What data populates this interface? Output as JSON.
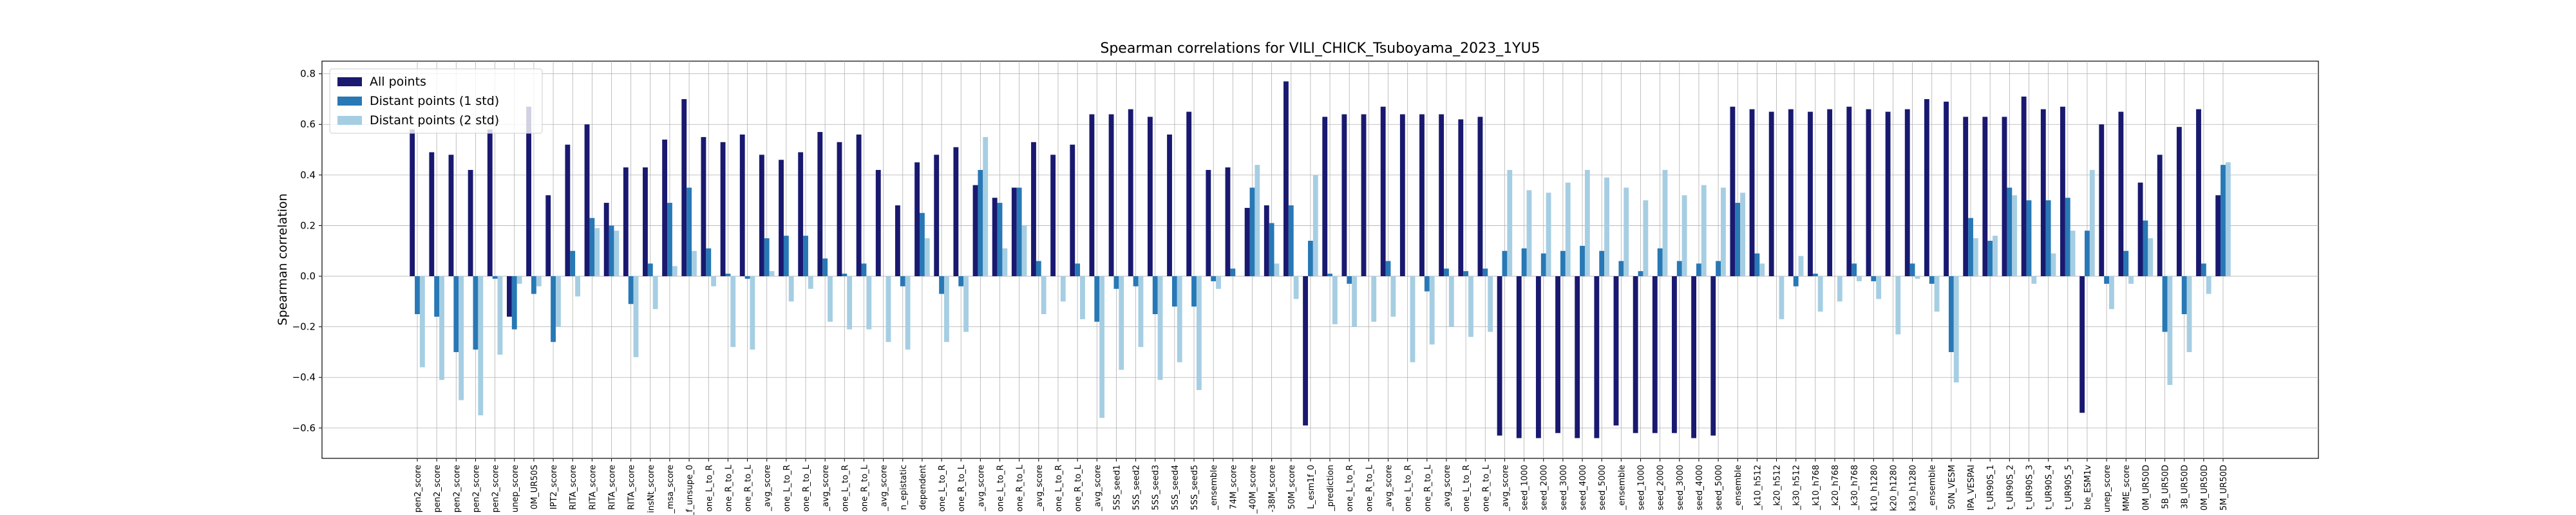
{
  "chart_data": {
    "type": "bar",
    "title": "Spearman correlations for VILI_CHICK_Tsuboyama_2023_1YU5",
    "y_label": "Spearman correlation",
    "categories": [
      "pen2_score",
      "pen2_score",
      "pen2_score",
      "pen2_score",
      "pen2_score",
      "unep_score",
      "0M_UR50S",
      "IPT2_score",
      "RITA_score",
      "RITA_score",
      "RITA_score",
      "RITA_score",
      "insNt_score",
      "_msa_score",
      "_f_unsupe_0",
      "one_L_to_R",
      "one_R_to_L",
      "one_R_to_L",
      "_avg_score",
      "one_L_to_R",
      "one_R_to_L",
      "_avg_score",
      "one_L_to_R",
      "one_R_to_L",
      "_avg_score",
      "n_epistatic",
      "dependent",
      "one_L_to_R",
      "one_R_to_L",
      "_avg_score",
      "one_L_to_R",
      "one_R_to_L",
      "_avg_score",
      "one_L_to_R",
      "one_R_to_L",
      "_avg_score",
      "5SS_seed1",
      "5SS_seed2",
      "5SS_seed3",
      "5SS_seed4",
      "5SS_seed5",
      "_ensemble",
      "74M_score",
      "_40M_score",
      "-38M_score",
      "50M_score",
      "L_esm1f_0",
      "_prediction",
      "one_L_to_R",
      "one_R_to_L",
      "_avg_score",
      "one_L_to_R",
      "one_R_to_L",
      "_avg_score",
      "one_L_to_R",
      "one_R_to_L",
      "_avg_score",
      "seed_1000",
      "seed_2000",
      "seed_3000",
      "seed_4000",
      "seed_5000",
      "_ensemble",
      "seed_1000",
      "seed_2000",
      "seed_3000",
      "seed_4000",
      "seed_5000",
      "_ensemble",
      "_k10_h512",
      "_k20_h512",
      "_k30_h512",
      "_k10_h768",
      "_k20_h768",
      "_k30_h768",
      "k10_h1280",
      "k20_h1280",
      "k30_h1280",
      "_ensemble",
      "50N_VESM",
      "IPA_VESPAI",
      "t_UR90S_1",
      "t_UR90S_2",
      "t_UR90S_3",
      "t_UR90S_4",
      "t_UR90S_5",
      "ble_ESM1v",
      "unep_score",
      "MME_score",
      "0M_UR50D",
      "5B_UR50D",
      "3B_UR50D",
      "0M_UR50D",
      "5M_UR50D"
    ],
    "series": [
      {
        "name": "All points",
        "color": "#191970",
        "values": [
          0.58,
          0.49,
          0.48,
          0.42,
          0.58,
          -0.16,
          0.67,
          0.32,
          0.52,
          0.6,
          0.29,
          0.43,
          0.43,
          0.54,
          0.7,
          0.55,
          0.53,
          0.56,
          0.48,
          0.46,
          0.49,
          0.57,
          0.53,
          0.56,
          0.42,
          0.28,
          0.45,
          0.48,
          0.51,
          0.36,
          0.31,
          0.35,
          0.53,
          0.48,
          0.52,
          0.64,
          0.64,
          0.66,
          0.63,
          0.56,
          0.65,
          0.42,
          0.43,
          0.27,
          0.28,
          0.77,
          -0.59,
          0.63,
          0.64,
          0.64,
          0.67,
          0.64,
          0.64,
          0.64,
          0.62,
          0.63,
          -0.63,
          -0.64,
          -0.64,
          -0.62,
          -0.64,
          -0.64,
          -0.59,
          -0.62,
          -0.62,
          -0.62,
          -0.64,
          -0.63,
          0.67,
          0.66,
          0.65,
          0.66,
          0.65,
          0.66,
          0.67,
          0.66,
          0.65,
          0.66,
          0.7,
          0.69,
          0.63,
          0.63,
          0.63,
          0.71,
          0.66,
          0.67,
          -0.54,
          0.6,
          0.65,
          0.37,
          0.48,
          0.59,
          0.66,
          0.32
        ]
      },
      {
        "name": "Distant points (1 std)",
        "color": "#2878b5",
        "values": [
          -0.15,
          -0.16,
          -0.3,
          -0.29,
          -0.01,
          -0.21,
          -0.07,
          -0.26,
          0.1,
          0.23,
          0.2,
          -0.11,
          0.05,
          0.29,
          0.35,
          0.11,
          0.01,
          -0.01,
          0.15,
          0.16,
          0.16,
          0.07,
          0.01,
          0.05,
          0.0,
          -0.04,
          0.25,
          -0.07,
          -0.04,
          0.42,
          0.29,
          0.35,
          0.06,
          0.0,
          0.05,
          -0.18,
          -0.05,
          -0.04,
          -0.15,
          -0.12,
          -0.12,
          -0.02,
          0.03,
          0.35,
          0.21,
          0.28,
          0.14,
          0.01,
          -0.03,
          0.0,
          0.06,
          0.0,
          -0.06,
          0.03,
          0.02,
          0.03,
          0.1,
          0.11,
          0.09,
          0.1,
          0.12,
          0.1,
          0.06,
          0.02,
          0.11,
          0.06,
          0.05,
          0.06,
          0.29,
          0.09,
          0.0,
          -0.04,
          0.01,
          0.0,
          0.05,
          -0.02,
          0.0,
          0.05,
          -0.03,
          -0.3,
          0.23,
          0.14,
          0.35,
          0.3,
          0.3,
          0.31,
          0.18,
          -0.03,
          0.1,
          0.22,
          -0.22,
          -0.15,
          0.05,
          0.44
        ]
      },
      {
        "name": "Distant points (2 std)",
        "color": "#a6cee3",
        "values": [
          -0.36,
          -0.41,
          -0.49,
          -0.55,
          -0.31,
          -0.03,
          -0.04,
          -0.2,
          -0.08,
          0.19,
          0.18,
          -0.32,
          -0.13,
          0.04,
          0.1,
          -0.04,
          -0.28,
          -0.29,
          0.02,
          -0.1,
          -0.05,
          -0.18,
          -0.21,
          -0.21,
          -0.26,
          -0.29,
          0.15,
          -0.26,
          -0.22,
          0.55,
          0.11,
          0.2,
          -0.15,
          -0.1,
          -0.17,
          -0.56,
          -0.37,
          -0.28,
          -0.41,
          -0.34,
          -0.45,
          -0.05,
          0.0,
          0.44,
          0.05,
          -0.09,
          0.4,
          -0.19,
          -0.2,
          -0.18,
          -0.16,
          -0.34,
          -0.27,
          -0.2,
          -0.24,
          -0.22,
          0.42,
          0.34,
          0.33,
          0.37,
          0.42,
          0.39,
          0.35,
          0.3,
          0.42,
          0.32,
          0.36,
          0.35,
          0.33,
          0.05,
          -0.17,
          0.08,
          -0.14,
          -0.1,
          -0.02,
          -0.09,
          -0.23,
          -0.01,
          -0.14,
          -0.42,
          0.15,
          0.16,
          0.32,
          -0.03,
          0.09,
          0.18,
          0.42,
          -0.13,
          -0.03,
          0.15,
          -0.43,
          -0.3,
          -0.07,
          0.45
        ]
      }
    ],
    "ylim": [
      -0.72,
      0.85
    ],
    "yticks": [
      {
        "value": -0.6,
        "label": "−0.6"
      },
      {
        "value": -0.4,
        "label": "−0.4"
      },
      {
        "value": -0.2,
        "label": "−0.2"
      },
      {
        "value": 0,
        "label": "0.0"
      },
      0.2,
      0.4,
      0.6,
      0.8
    ],
    "grid": true,
    "legend": "upper left"
  }
}
